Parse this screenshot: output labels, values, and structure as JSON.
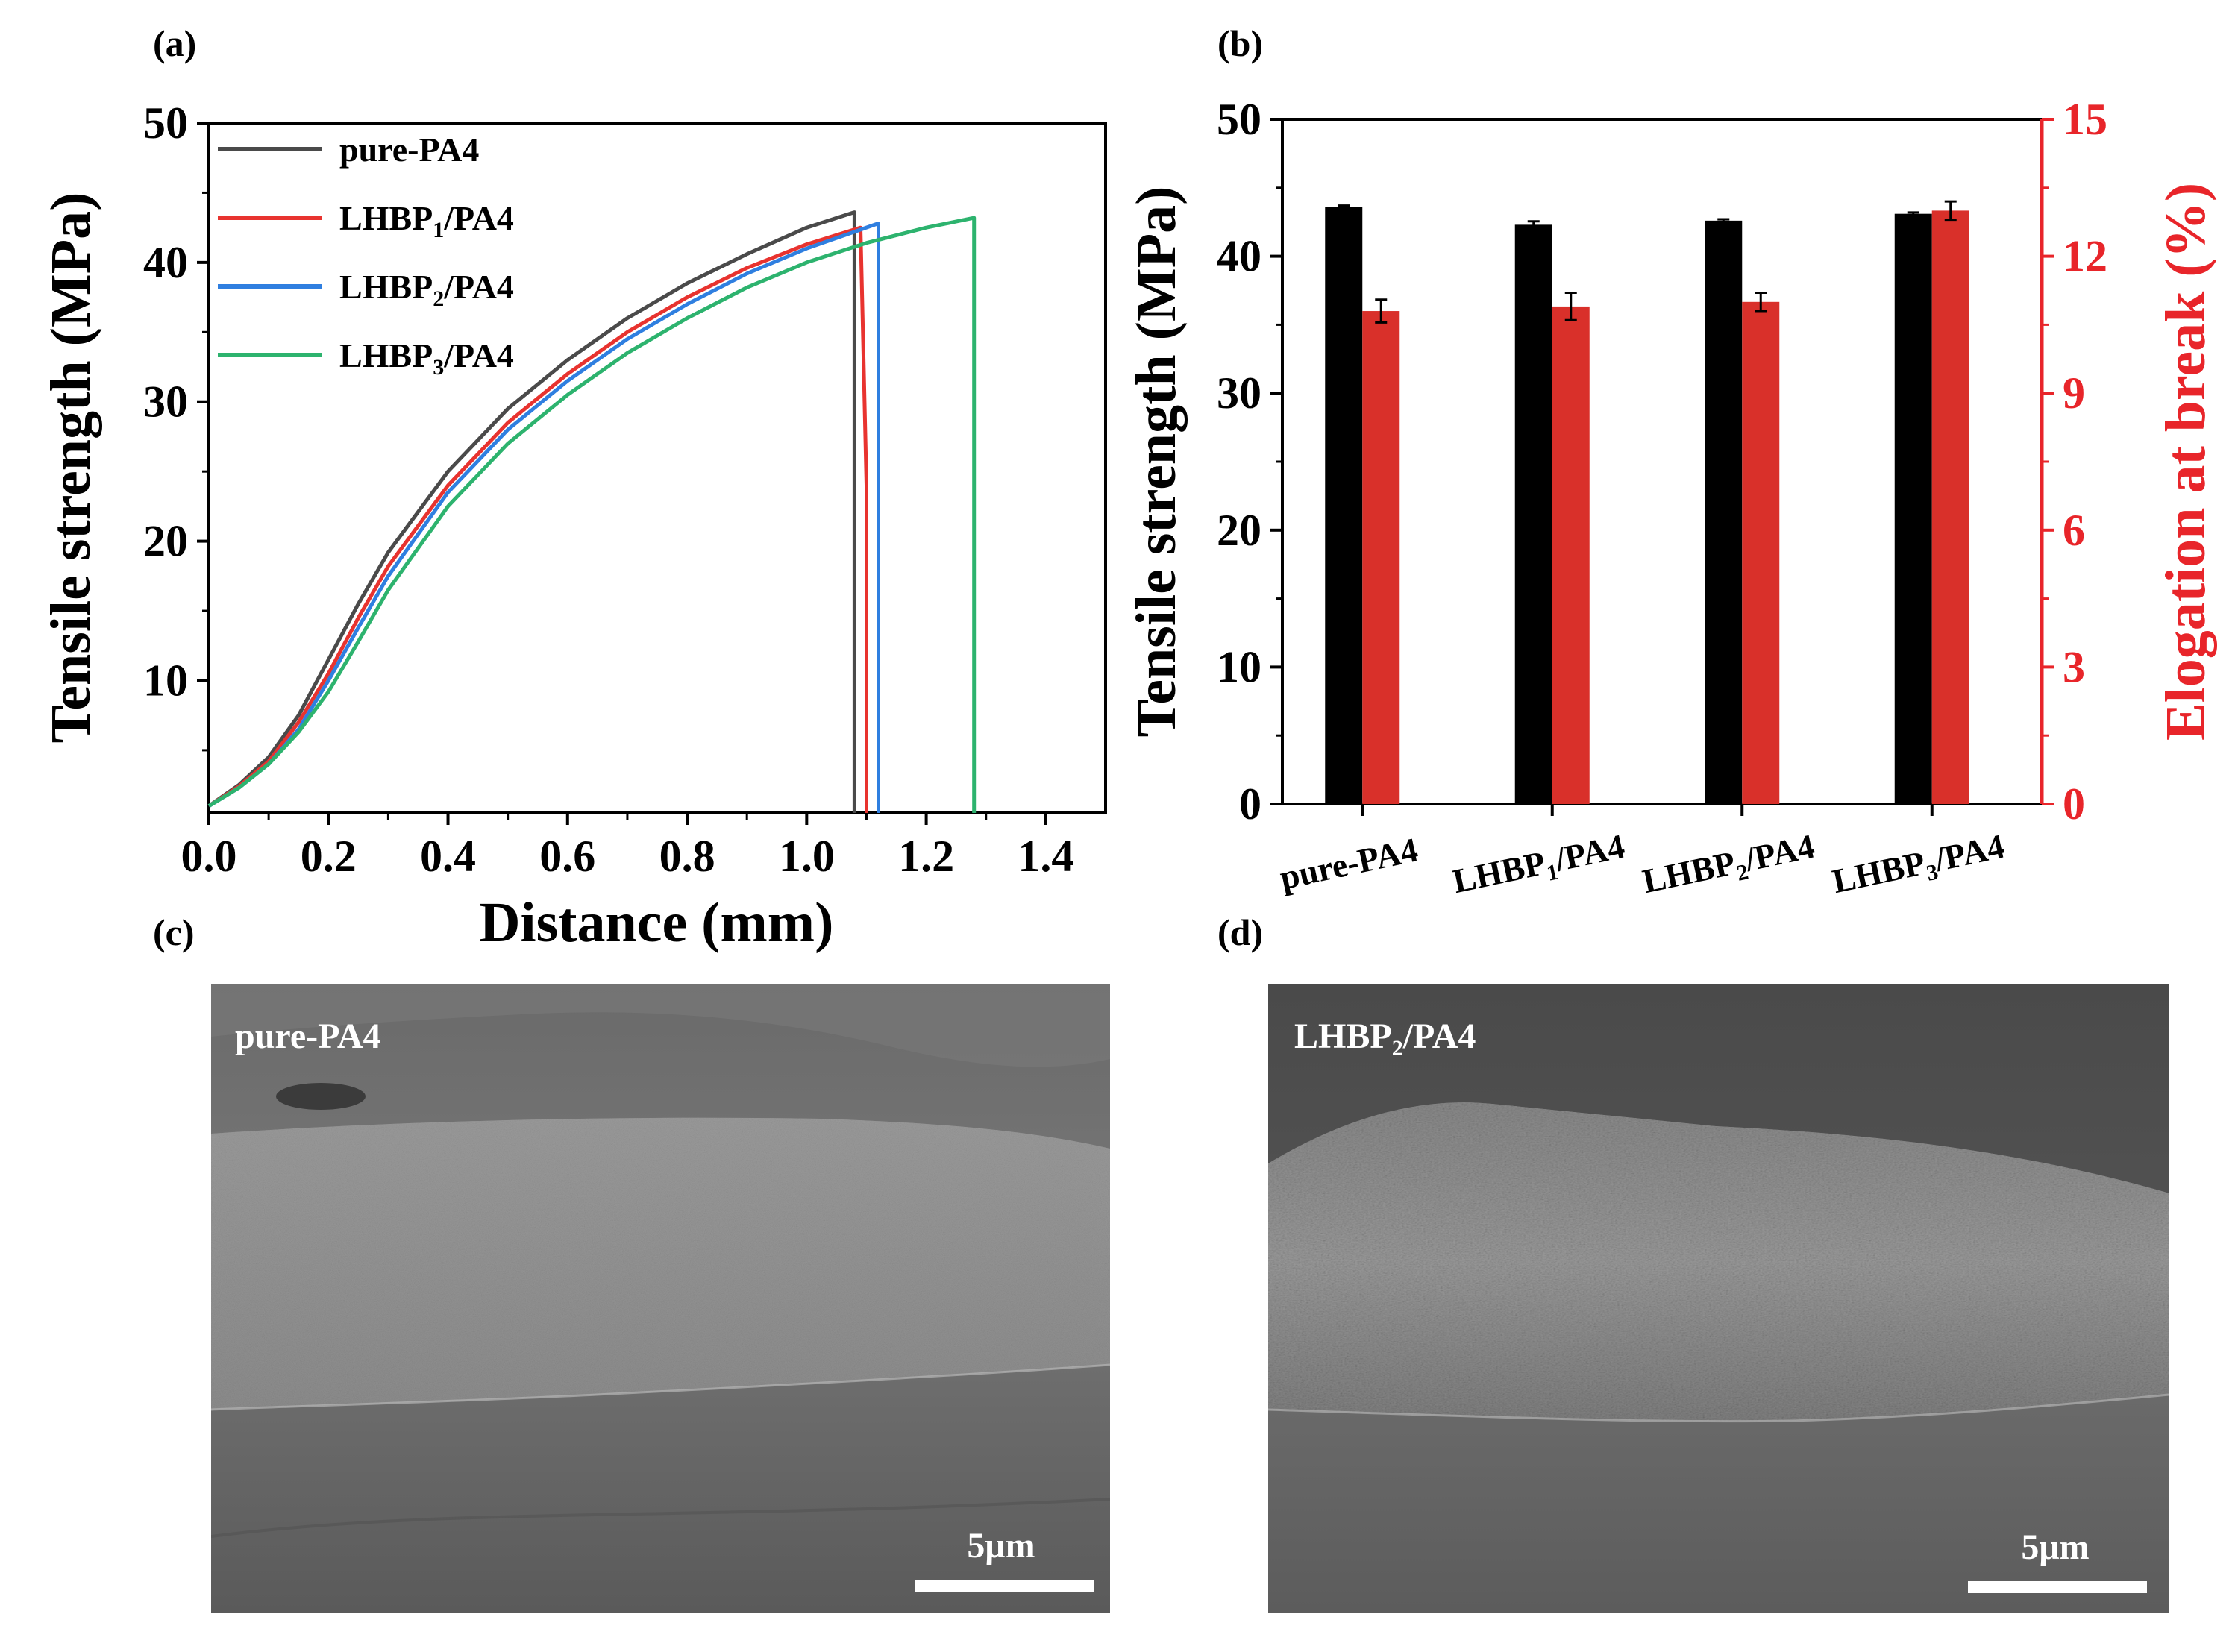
{
  "panels": {
    "a": "(a)",
    "b": "(b)",
    "c": "(c)",
    "d": "(d)"
  },
  "chart_data": [
    {
      "type": "line",
      "xlabel": "Distance (mm)",
      "ylabel": "Tensile strength (MPa)",
      "xlim": [
        0,
        1.5
      ],
      "ylim": [
        0.5,
        50
      ],
      "xticks": [
        "0.0",
        "0.2",
        "0.4",
        "0.6",
        "0.8",
        "1.0",
        "1.2",
        "1.4"
      ],
      "yticks": [
        "10",
        "20",
        "30",
        "40",
        "50"
      ],
      "legend_position": "top-left",
      "series": [
        {
          "name": "pure-PA4",
          "label_main": "pure-PA4",
          "label_sub": "",
          "label_tail": "",
          "color": "#4a4a4a",
          "x": [
            0,
            0.05,
            0.1,
            0.15,
            0.2,
            0.25,
            0.3,
            0.4,
            0.5,
            0.6,
            0.7,
            0.8,
            0.9,
            1.0,
            1.08,
            1.08
          ],
          "y": [
            1,
            2.5,
            4.5,
            7.5,
            11.5,
            15.5,
            19.2,
            25,
            29.5,
            33,
            36,
            38.5,
            40.6,
            42.5,
            43.6,
            0.5
          ]
        },
        {
          "name": "LHBP1/PA4",
          "label_main": "LHBP",
          "label_sub": "1",
          "label_tail": "/PA4",
          "color": "#e8332f",
          "x": [
            0,
            0.05,
            0.1,
            0.15,
            0.2,
            0.25,
            0.3,
            0.4,
            0.5,
            0.6,
            0.7,
            0.8,
            0.9,
            1.0,
            1.09,
            1.1,
            1.1
          ],
          "y": [
            1,
            2.4,
            4.2,
            7,
            10.5,
            14.5,
            18.2,
            24,
            28.5,
            32,
            35,
            37.5,
            39.6,
            41.3,
            42.5,
            24,
            0.5
          ]
        },
        {
          "name": "LHBP2/PA4",
          "label_main": "LHBP",
          "label_sub": "2",
          "label_tail": "/PA4",
          "color": "#2f7fe0",
          "x": [
            0,
            0.05,
            0.1,
            0.15,
            0.2,
            0.25,
            0.3,
            0.4,
            0.5,
            0.6,
            0.7,
            0.8,
            0.9,
            1.0,
            1.12,
            1.12
          ],
          "y": [
            1,
            2.3,
            4,
            6.5,
            10,
            13.8,
            17.5,
            23.5,
            28,
            31.5,
            34.5,
            37,
            39.2,
            41,
            42.8,
            0.5
          ]
        },
        {
          "name": "LHBP3/PA4",
          "label_main": "LHBP",
          "label_sub": "3",
          "label_tail": "/PA4",
          "color": "#2db36e",
          "x": [
            0,
            0.05,
            0.1,
            0.15,
            0.2,
            0.25,
            0.3,
            0.4,
            0.5,
            0.6,
            0.7,
            0.8,
            0.9,
            1.0,
            1.1,
            1.2,
            1.28,
            1.28
          ],
          "y": [
            1,
            2.3,
            4,
            6.3,
            9.2,
            12.8,
            16.5,
            22.5,
            27,
            30.5,
            33.5,
            36,
            38.2,
            40,
            41.4,
            42.5,
            43.2,
            0.5
          ]
        }
      ]
    },
    {
      "type": "bar",
      "categories": [
        {
          "name": "pure-PA4",
          "main": "pure-PA4",
          "sub": "",
          "tail": ""
        },
        {
          "name": "LHBP1/PA4",
          "main": "LHBP",
          "sub": "1",
          "tail": "/PA4"
        },
        {
          "name": "LHBP2/PA4",
          "main": "LHBP",
          "sub": "2",
          "tail": "/PA4"
        },
        {
          "name": "LHBP3/PA4",
          "main": "LHBP",
          "sub": "3",
          "tail": "/PA4"
        }
      ],
      "ylabel": "Tensile strength (MPa)",
      "y2label": "Elogation at break (%)",
      "ylim": [
        0,
        50
      ],
      "y2lim": [
        0,
        15
      ],
      "yticks": [
        "0",
        "10",
        "20",
        "30",
        "40",
        "50"
      ],
      "y2ticks": [
        "0",
        "3",
        "6",
        "9",
        "12",
        "15"
      ],
      "series": [
        {
          "axis": "left",
          "color": "#000000",
          "values": [
            43.6,
            42.3,
            42.6,
            43.1
          ],
          "errors": [
            0.1,
            0.25,
            0.1,
            0.1
          ]
        },
        {
          "axis": "right",
          "color": "#d9302a",
          "values": [
            10.8,
            10.9,
            11.0,
            13.0
          ],
          "errors": [
            0.25,
            0.3,
            0.2,
            0.2
          ]
        }
      ]
    }
  ],
  "sem": [
    {
      "label_main": "pure-PA4",
      "label_sub": "",
      "label_tail": "",
      "scale": "5μm"
    },
    {
      "label_main": "LHBP",
      "label_sub": "2",
      "label_tail": "/PA4",
      "scale": "5μm"
    }
  ],
  "colors": {
    "red_axis": "#e8252a",
    "black": "#000000"
  }
}
